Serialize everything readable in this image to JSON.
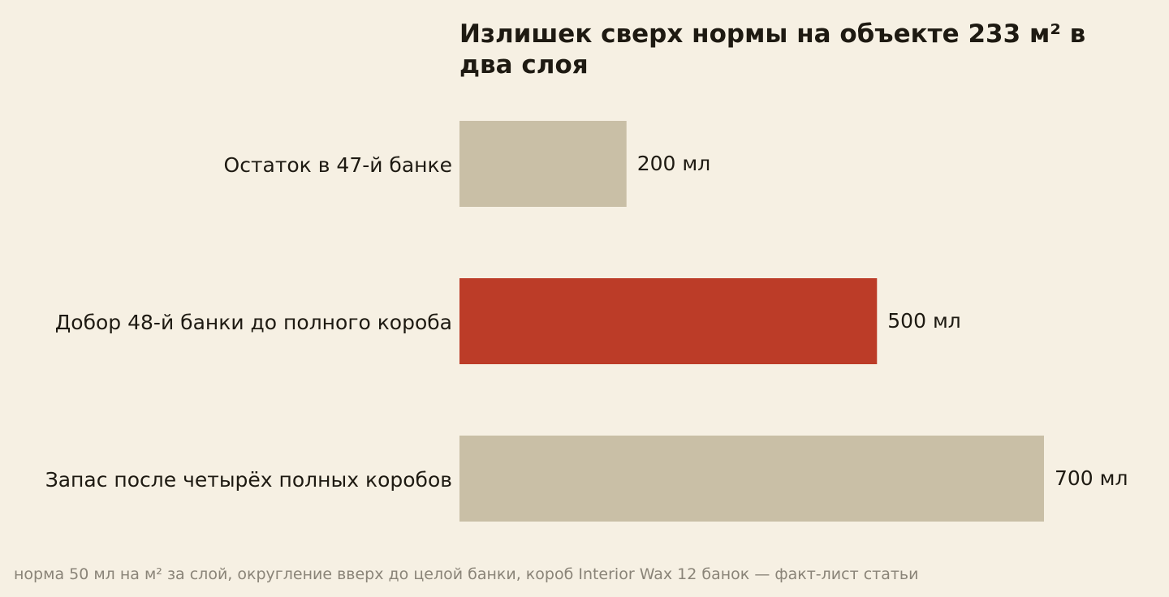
{
  "chart_data": {
    "type": "bar",
    "orientation": "horizontal",
    "title_lines": [
      "Излишек сверх нормы на объекте 233 м² в",
      "два слоя"
    ],
    "categories": [
      "Остаток в 47-й банке",
      "Добор 48-й банки до полного короба",
      "Запас после четырёх полных коробов"
    ],
    "values": [
      200,
      500,
      700
    ],
    "value_labels": [
      "200 мл",
      "500 мл",
      "700 мл"
    ],
    "xlim": [
      0,
      700
    ],
    "grid": false,
    "colors": [
      "#c9bfa6",
      "#bc3c28",
      "#c9bfa6"
    ],
    "footnote": "норма 50 мл на м² за слой, округление вверх до целой банки, короб Interior Wax 12 банок — факт-лист статьи"
  }
}
